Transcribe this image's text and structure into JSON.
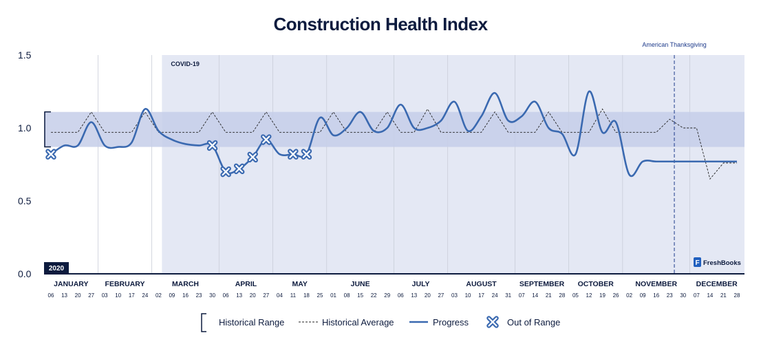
{
  "chart_data": {
    "type": "line",
    "title": "Construction Health Index",
    "year_badge": "2020",
    "brand": "FreshBooks",
    "ylim": [
      0.0,
      1.5
    ],
    "yticks": [
      "0.0",
      "0.5",
      "1.0",
      "1.5"
    ],
    "historical_range": [
      0.87,
      1.11
    ],
    "months": [
      "JANUARY",
      "FEBRUARY",
      "MARCH",
      "APRIL",
      "MAY",
      "JUNE",
      "JULY",
      "AUGUST",
      "SEPTEMBER",
      "OCTOBER",
      "NOVEMBER",
      "DECEMBER"
    ],
    "weeks": [
      {
        "month": 0,
        "day": "06"
      },
      {
        "month": 0,
        "day": "13"
      },
      {
        "month": 0,
        "day": "20"
      },
      {
        "month": 0,
        "day": "27"
      },
      {
        "month": 1,
        "day": "03"
      },
      {
        "month": 1,
        "day": "10"
      },
      {
        "month": 1,
        "day": "17"
      },
      {
        "month": 1,
        "day": "24"
      },
      {
        "month": 2,
        "day": "02"
      },
      {
        "month": 2,
        "day": "09"
      },
      {
        "month": 2,
        "day": "16"
      },
      {
        "month": 2,
        "day": "23"
      },
      {
        "month": 2,
        "day": "30"
      },
      {
        "month": 3,
        "day": "06"
      },
      {
        "month": 3,
        "day": "13"
      },
      {
        "month": 3,
        "day": "20"
      },
      {
        "month": 3,
        "day": "27"
      },
      {
        "month": 4,
        "day": "04"
      },
      {
        "month": 4,
        "day": "11"
      },
      {
        "month": 4,
        "day": "18"
      },
      {
        "month": 4,
        "day": "25"
      },
      {
        "month": 5,
        "day": "01"
      },
      {
        "month": 5,
        "day": "08"
      },
      {
        "month": 5,
        "day": "15"
      },
      {
        "month": 5,
        "day": "22"
      },
      {
        "month": 5,
        "day": "29"
      },
      {
        "month": 6,
        "day": "06"
      },
      {
        "month": 6,
        "day": "13"
      },
      {
        "month": 6,
        "day": "20"
      },
      {
        "month": 6,
        "day": "27"
      },
      {
        "month": 7,
        "day": "03"
      },
      {
        "month": 7,
        "day": "10"
      },
      {
        "month": 7,
        "day": "17"
      },
      {
        "month": 7,
        "day": "24"
      },
      {
        "month": 7,
        "day": "31"
      },
      {
        "month": 8,
        "day": "07"
      },
      {
        "month": 8,
        "day": "14"
      },
      {
        "month": 8,
        "day": "21"
      },
      {
        "month": 8,
        "day": "28"
      },
      {
        "month": 9,
        "day": "05"
      },
      {
        "month": 9,
        "day": "12"
      },
      {
        "month": 9,
        "day": "19"
      },
      {
        "month": 9,
        "day": "26"
      },
      {
        "month": 10,
        "day": "02"
      },
      {
        "month": 10,
        "day": "09"
      },
      {
        "month": 10,
        "day": "16"
      },
      {
        "month": 10,
        "day": "23"
      },
      {
        "month": 10,
        "day": "30"
      },
      {
        "month": 11,
        "day": "07"
      },
      {
        "month": 11,
        "day": "14"
      },
      {
        "month": 11,
        "day": "21"
      },
      {
        "month": 11,
        "day": "28"
      }
    ],
    "series": [
      {
        "name": "Historical Average",
        "style": "dashed",
        "color": "#222222",
        "values": [
          0.97,
          0.97,
          0.97,
          1.11,
          0.97,
          0.97,
          0.97,
          1.11,
          0.97,
          0.97,
          0.97,
          0.97,
          1.11,
          0.97,
          0.97,
          0.97,
          1.11,
          0.97,
          0.97,
          0.97,
          0.97,
          1.11,
          0.97,
          0.97,
          0.97,
          1.11,
          0.97,
          0.97,
          1.13,
          0.97,
          0.97,
          0.97,
          0.97,
          1.11,
          0.97,
          0.97,
          0.97,
          1.11,
          0.97,
          0.97,
          0.97,
          1.13,
          0.97,
          0.97,
          0.97,
          0.97,
          1.06,
          1.0,
          1.0,
          0.65,
          0.76,
          0.76
        ]
      },
      {
        "name": "Progress",
        "style": "solid",
        "color": "#3a69b0",
        "values": [
          0.82,
          0.88,
          0.88,
          1.04,
          0.88,
          0.87,
          0.9,
          1.13,
          0.98,
          0.92,
          0.89,
          0.88,
          0.88,
          0.7,
          0.72,
          0.8,
          0.92,
          0.82,
          0.82,
          0.82,
          1.07,
          0.95,
          1.0,
          1.11,
          0.98,
          1.0,
          1.16,
          1.0,
          1.0,
          1.05,
          1.18,
          0.98,
          1.08,
          1.24,
          1.05,
          1.08,
          1.18,
          1.0,
          0.96,
          0.82,
          1.25,
          0.97,
          1.04,
          0.68,
          0.77,
          0.77,
          0.77,
          0.77,
          0.77,
          0.77,
          0.77,
          0.77
        ]
      }
    ],
    "x_positions_note": "",
    "out_of_range_weeks": [
      0,
      12,
      13,
      14,
      15,
      16,
      18,
      19
    ],
    "shaded_region": {
      "label": "COVID-19",
      "start_week": 8,
      "end_week": 51
    },
    "annotation": {
      "label": "American Thanksgiving",
      "week": 46
    },
    "legend": {
      "range_label": "Historical Range",
      "average_label": "Historical Average",
      "progress_label": "Progress",
      "out_label": "Out of Range"
    },
    "colors": {
      "title": "#0d1b3e",
      "covid_fill": "#e4e8f4",
      "range_band": "#c5cee9",
      "progress": "#3a69b0",
      "average": "#222222",
      "badge": "#0d1b3e"
    }
  }
}
